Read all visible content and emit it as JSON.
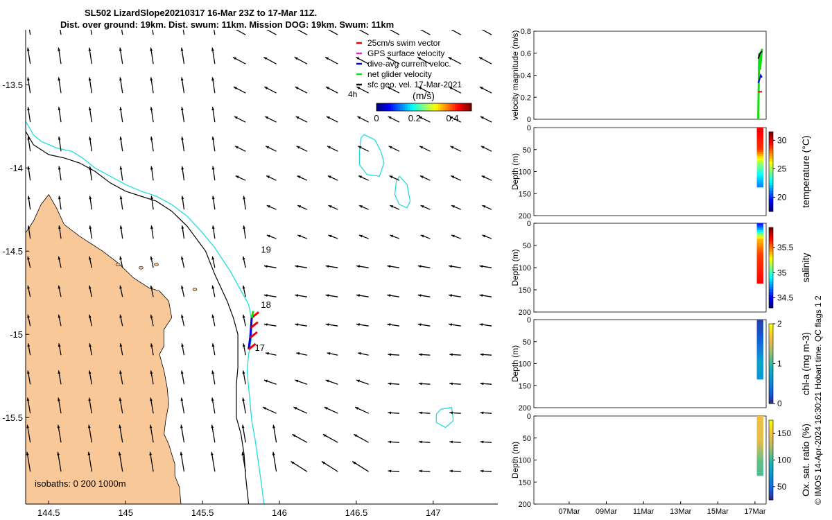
{
  "title": {
    "line1": "SL502 LizardSlope20210317 16-Mar 23Z to 17-Mar 11Z.",
    "line2": "Dist. over ground: 19km. Dist. swum: 11km. Mission DOG: 19km. Swum: 11km"
  },
  "side_note": "© IMOS 14-Apr-2024 16:30:21 Hobart time. QC flags 1  2",
  "colors": {
    "land": "#f9c898",
    "isobath_0": "#000000",
    "isobath_200": "#000000",
    "isobath_1000": "#22dddd",
    "swim": "#ee0000",
    "gps": "#dd22dd",
    "dive_avg": "#0000dd",
    "net_glider": "#11dd11",
    "sfc_geo": "#000000"
  },
  "chart_data": [
    {
      "type": "scatter",
      "name": "map",
      "xlim": [
        144.35,
        147.42
      ],
      "ylim": [
        -16.02,
        -13.17
      ],
      "xticks": [
        144.5,
        145,
        145.5,
        146,
        146.5,
        147
      ],
      "xtick_labels": [
        "144.5",
        "145",
        "145.5",
        "146",
        "146.5",
        "147"
      ],
      "yticks": [
        -13.5,
        -14,
        -14.5,
        -15,
        -15.5
      ],
      "ytick_labels": [
        "-13.5",
        "-14",
        "-14.5",
        "-15",
        "-15.5"
      ],
      "legend": [
        {
          "key": "swim",
          "label": "25cm/s swim vector"
        },
        {
          "key": "gps",
          "label": "GPS surface velocity"
        },
        {
          "key": "dive_avg",
          "label": "dive-avg current veloc."
        },
        {
          "key": "net_glider",
          "label": "net glider velocity"
        },
        {
          "key": "sfc_geo",
          "label": "sfc geo. vel. 17-Mar-2021"
        }
      ],
      "legend_position": "top-right",
      "time_step_label": "4h",
      "colorbar": {
        "title": "(m/s)",
        "ticks": [
          "0",
          "0.2",
          "0.4"
        ],
        "range": [
          0,
          0.5
        ]
      },
      "isobath_label": "isobaths: 0   200  1000m",
      "track_labels": [
        {
          "text": "19",
          "lon": 145.88,
          "lat": -14.51
        },
        {
          "text": "18",
          "lon": 145.88,
          "lat": -14.84
        },
        {
          "text": "17",
          "lon": 145.84,
          "lat": -15.1
        }
      ],
      "glider_track": [
        {
          "lon": 145.8,
          "lat": -15.09
        },
        {
          "lon": 145.81,
          "lat": -15.02
        },
        {
          "lon": 145.815,
          "lat": -14.96
        },
        {
          "lon": 145.82,
          "lat": -14.9
        }
      ]
    },
    {
      "type": "line",
      "name": "velocity",
      "ylabel": "velocity magnitude (m/s)",
      "ylim": [
        0,
        0.8
      ],
      "yticks": [
        "0",
        "0.2",
        "0.4",
        "0.6",
        "0.8"
      ],
      "series": [
        {
          "key": "net_glider",
          "values": [
            0.0,
            0.6,
            0.45,
            0.55,
            0.64
          ]
        },
        {
          "key": "sfc_geo",
          "values": [
            0.55,
            0.6,
            0.62
          ]
        },
        {
          "key": "dive_avg",
          "values": [
            0.33,
            0.36,
            0.4,
            0.38
          ]
        },
        {
          "key": "swim",
          "values": [
            0.25,
            0.25,
            0.25
          ]
        }
      ]
    },
    {
      "type": "heatmap",
      "name": "temperature",
      "ylabel": "Depth (m)",
      "clabel": "temperature (°C)",
      "ylim": [
        200,
        0
      ],
      "yticks": [
        "0",
        "50",
        "100",
        "150",
        "200"
      ],
      "crange": [
        17.5,
        31.5
      ],
      "cticks": [
        "20",
        "25",
        "30"
      ],
      "max_depth": 135,
      "profile": [
        {
          "depth": 0,
          "value": 30
        },
        {
          "depth": 50,
          "value": 29
        },
        {
          "depth": 80,
          "value": 25
        },
        {
          "depth": 110,
          "value": 22.5
        },
        {
          "depth": 135,
          "value": 21
        }
      ]
    },
    {
      "type": "heatmap",
      "name": "salinity",
      "ylabel": "Depth (m)",
      "clabel": "salinity",
      "ylim": [
        200,
        0
      ],
      "yticks": [
        "0",
        "50",
        "100",
        "150",
        "200"
      ],
      "crange": [
        34.3,
        35.9
      ],
      "cticks": [
        "34.5",
        "35",
        "35.5"
      ],
      "max_depth": 135,
      "profile": [
        {
          "depth": 0,
          "value": 34.5
        },
        {
          "depth": 15,
          "value": 34.8
        },
        {
          "depth": 35,
          "value": 35.4
        },
        {
          "depth": 70,
          "value": 35.6
        },
        {
          "depth": 135,
          "value": 35.7
        }
      ]
    },
    {
      "type": "heatmap",
      "name": "chl-a",
      "ylabel": "Depth (m)",
      "clabel": "chl-a (mg m-3)",
      "ylim": [
        200,
        0
      ],
      "yticks": [
        "0",
        "50",
        "100",
        "150",
        "200"
      ],
      "crange": [
        0,
        2
      ],
      "cticks": [
        "0",
        "1",
        "2"
      ],
      "max_depth": 135,
      "profile": [
        {
          "depth": 0,
          "value": 0.1
        },
        {
          "depth": 40,
          "value": 0.2
        },
        {
          "depth": 70,
          "value": 0.45
        },
        {
          "depth": 100,
          "value": 0.75
        },
        {
          "depth": 135,
          "value": 0.6
        }
      ]
    },
    {
      "type": "heatmap",
      "name": "oxygen",
      "ylabel": "Depth (m)",
      "clabel": "Ox. sat. ratio (%)",
      "ylim": [
        200,
        0
      ],
      "yticks": [
        "0",
        "50",
        "100",
        "150",
        "200"
      ],
      "crange": [
        25,
        175
      ],
      "cticks": [
        "50",
        "100",
        "150"
      ],
      "max_depth": 135,
      "profile": [
        {
          "depth": 0,
          "value": 148
        },
        {
          "depth": 55,
          "value": 145
        },
        {
          "depth": 80,
          "value": 125
        },
        {
          "depth": 100,
          "value": 112
        },
        {
          "depth": 135,
          "value": 105
        }
      ]
    }
  ],
  "time_axis": {
    "ticks": [
      "07Mar",
      "09Mar",
      "11Mar",
      "13Mar",
      "15Mar",
      "17Mar"
    ],
    "range_days": [
      5.1,
      17.6
    ],
    "tick_days": [
      7,
      9,
      11,
      13,
      15,
      17
    ],
    "data_start_day": 16.95,
    "data_end_day": 17.45
  }
}
